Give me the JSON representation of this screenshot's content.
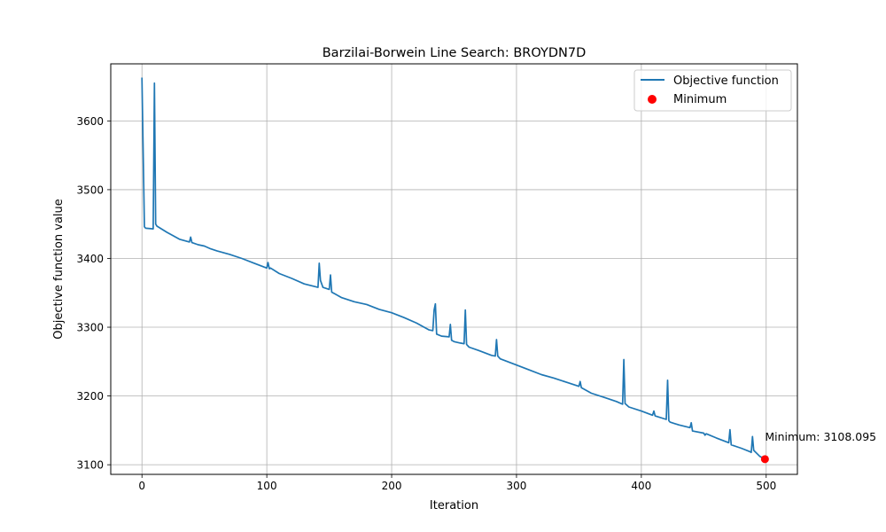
{
  "chart_data": {
    "type": "line",
    "title": "Barzilai-Borwein Line Search: BROYDN7D",
    "xlabel": "Iteration",
    "ylabel": "Objective function value",
    "xlim": [
      -25,
      525
    ],
    "ylim": [
      3086,
      3683
    ],
    "xticks": [
      0,
      100,
      200,
      300,
      400,
      500
    ],
    "yticks": [
      3100,
      3200,
      3300,
      3400,
      3500,
      3600
    ],
    "grid": true,
    "legend_position": "top-right",
    "series": [
      {
        "name": "Objective function",
        "color": "#1f77b4",
        "x": [
          0,
          2,
          3,
          9,
          10,
          11,
          12,
          20,
          25,
          30,
          38,
          39,
          40,
          45,
          50,
          55,
          60,
          70,
          80,
          90,
          100,
          101,
          102,
          103,
          110,
          120,
          130,
          141,
          142,
          143,
          145,
          150,
          151,
          152,
          155,
          160,
          170,
          180,
          190,
          200,
          210,
          220,
          230,
          233,
          234,
          235,
          236,
          240,
          246,
          247,
          248,
          250,
          255,
          258,
          259,
          260,
          262,
          270,
          280,
          283,
          284,
          285,
          287,
          290,
          300,
          310,
          320,
          330,
          340,
          350,
          351,
          352,
          360,
          370,
          380,
          385,
          386,
          387,
          390,
          400,
          409,
          410,
          411,
          420,
          421,
          422,
          423,
          430,
          439,
          440,
          441,
          450,
          451,
          452,
          460,
          470,
          471,
          472,
          480,
          487,
          488,
          489,
          490,
          495,
          499
        ],
        "values": [
          3663,
          3446,
          3444,
          3443,
          3655,
          3450,
          3447,
          3438,
          3433,
          3428,
          3424,
          3431,
          3423,
          3420,
          3418,
          3414,
          3411,
          3406,
          3400,
          3393,
          3386,
          3394,
          3385,
          3386,
          3378,
          3371,
          3363,
          3358,
          3393,
          3368,
          3358,
          3355,
          3376,
          3351,
          3348,
          3343,
          3337,
          3333,
          3326,
          3321,
          3314,
          3306,
          3296,
          3295,
          3325,
          3334,
          3290,
          3287,
          3286,
          3304,
          3281,
          3279,
          3277,
          3276,
          3325,
          3275,
          3271,
          3266,
          3259,
          3258,
          3282,
          3258,
          3254,
          3252,
          3245,
          3238,
          3231,
          3226,
          3220,
          3214,
          3221,
          3212,
          3204,
          3198,
          3192,
          3188,
          3253,
          3189,
          3184,
          3178,
          3172,
          3178,
          3171,
          3166,
          3223,
          3164,
          3162,
          3158,
          3154,
          3161,
          3149,
          3146,
          3143,
          3145,
          3139,
          3132,
          3151,
          3129,
          3124,
          3119,
          3118,
          3141,
          3121,
          3112,
          3108
        ]
      },
      {
        "name": "Minimum",
        "color": "#ff0000",
        "x": [
          499
        ],
        "values": [
          3108.095
        ]
      }
    ],
    "annotations": [
      {
        "text": "Minimum: 3108.095",
        "x": 499,
        "y": 3108.095
      }
    ]
  }
}
